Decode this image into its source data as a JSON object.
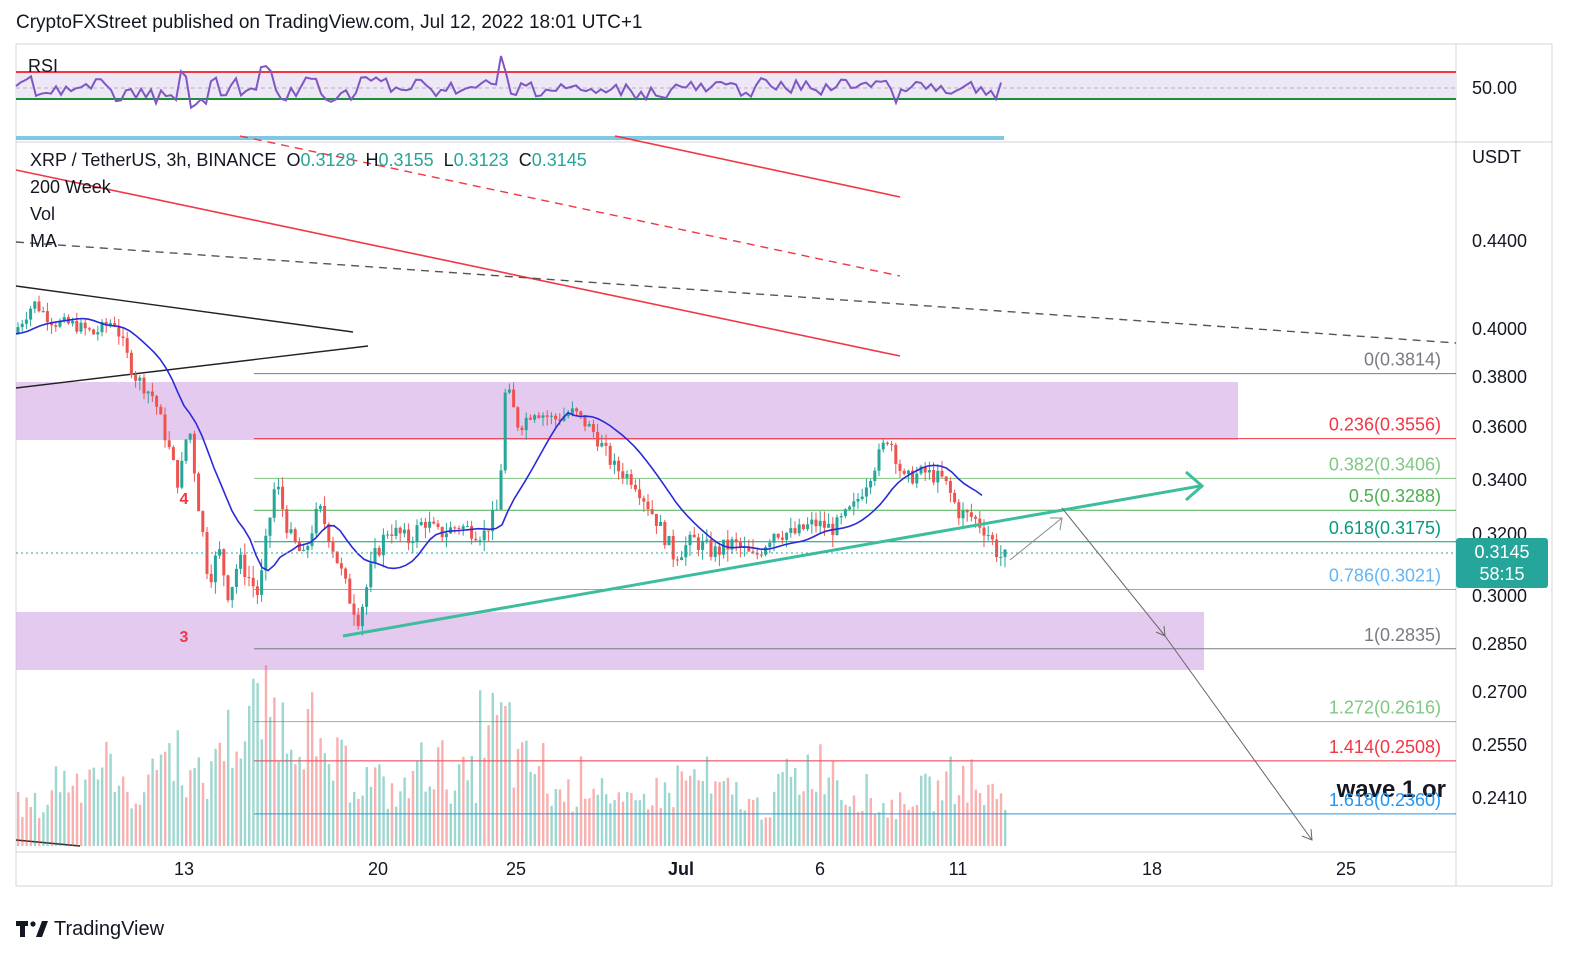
{
  "publisher": "CryptoFXStreet published on TradingView.com, Jul 12, 2022 18:01 UTC+1",
  "rsi": {
    "label": "RSI",
    "level_label": "50.00"
  },
  "legend": {
    "symbol": "XRP / TetherUS, 3h, BINANCE",
    "o_label": "O",
    "o_value": "0.3128",
    "h_label": "H",
    "h_value": "0.3155",
    "l_label": "L",
    "l_value": "0.3123",
    "c_label": "C",
    "c_value": "0.3145",
    "indicators": [
      "200 Week",
      "Vol",
      "MA"
    ]
  },
  "currency": "USDT",
  "price_tag": {
    "price": "0.3145",
    "countdown": "58:15"
  },
  "y_axis_ticks": [
    "0.4400",
    "0.4000",
    "0.3800",
    "0.3600",
    "0.3400",
    "0.3200",
    "0.3000",
    "0.2850",
    "0.2700",
    "0.2550",
    "0.2410"
  ],
  "x_axis_ticks": [
    "13",
    "20",
    "25",
    "Jul",
    "6",
    "11",
    "18",
    "25"
  ],
  "fib_levels": [
    {
      "text": "0(0.3814)",
      "color": "#787b86"
    },
    {
      "text": "0.236(0.3556)",
      "color": "#f23645"
    },
    {
      "text": "0.382(0.3406)",
      "color": "#81c784"
    },
    {
      "text": "0.5(0.3288)",
      "color": "#4caf50"
    },
    {
      "text": "0.618(0.3175)",
      "color": "#089981"
    },
    {
      "text": "0.786(0.3021)",
      "color": "#64b5f6"
    },
    {
      "text": "1(0.2835)",
      "color": "#787b86"
    },
    {
      "text": "1.272(0.2616)",
      "color": "#81c784"
    },
    {
      "text": "1.414(0.2508)",
      "color": "#f23645"
    },
    {
      "text": "1.618(0.2360)",
      "color": "#2196f3"
    }
  ],
  "wave_labels": {
    "three": "3",
    "four": "4",
    "annotation": "wave 1 or"
  },
  "footer": "TradingView",
  "colors": {
    "up": "#26a69a",
    "down": "#ef5350",
    "ma": "#2a2ad8",
    "trend": "#3dbd9e",
    "zone": "#d9b8e8"
  },
  "chart_data": {
    "type": "candlestick",
    "symbol": "XRP / TetherUS",
    "timeframe": "3h",
    "ohlc_last": {
      "open": 0.3128,
      "high": 0.3155,
      "low": 0.3123,
      "close": 0.3145
    },
    "x_ticks": [
      "13",
      "20",
      "25",
      "Jul",
      "6",
      "11",
      "18",
      "25"
    ],
    "y_ticks": [
      0.44,
      0.4,
      0.38,
      0.36,
      0.34,
      0.32,
      0.3,
      0.285,
      0.27,
      0.255,
      0.241
    ],
    "fib_retracement": [
      {
        "level": 0,
        "price": 0.3814
      },
      {
        "level": 0.236,
        "price": 0.3556
      },
      {
        "level": 0.382,
        "price": 0.3406
      },
      {
        "level": 0.5,
        "price": 0.3288
      },
      {
        "level": 0.618,
        "price": 0.3175
      },
      {
        "level": 0.786,
        "price": 0.3021
      },
      {
        "level": 1,
        "price": 0.2835
      },
      {
        "level": 1.272,
        "price": 0.2616
      },
      {
        "level": 1.414,
        "price": 0.2508
      },
      {
        "level": 1.618,
        "price": 0.236
      }
    ],
    "price_path": [
      [
        0,
        0.398
      ],
      [
        20,
        0.412
      ],
      [
        40,
        0.403
      ],
      [
        60,
        0.402
      ],
      [
        80,
        0.398
      ],
      [
        100,
        0.404
      ],
      [
        120,
        0.381
      ],
      [
        140,
        0.372
      ],
      [
        155,
        0.352
      ],
      [
        165,
        0.338
      ],
      [
        175,
        0.362
      ],
      [
        185,
        0.33
      ],
      [
        195,
        0.305
      ],
      [
        205,
        0.315
      ],
      [
        215,
        0.3
      ],
      [
        225,
        0.312
      ],
      [
        245,
        0.3
      ],
      [
        262,
        0.34
      ],
      [
        275,
        0.32
      ],
      [
        290,
        0.312
      ],
      [
        305,
        0.33
      ],
      [
        320,
        0.315
      ],
      [
        335,
        0.3
      ],
      [
        345,
        0.293
      ],
      [
        360,
        0.312
      ],
      [
        375,
        0.322
      ],
      [
        395,
        0.318
      ],
      [
        410,
        0.325
      ],
      [
        425,
        0.32
      ],
      [
        445,
        0.323
      ],
      [
        470,
        0.32
      ],
      [
        485,
        0.33
      ],
      [
        492,
        0.377
      ],
      [
        505,
        0.36
      ],
      [
        520,
        0.367
      ],
      [
        540,
        0.363
      ],
      [
        560,
        0.366
      ],
      [
        580,
        0.358
      ],
      [
        600,
        0.345
      ],
      [
        620,
        0.34
      ],
      [
        640,
        0.327
      ],
      [
        660,
        0.313
      ],
      [
        680,
        0.318
      ],
      [
        700,
        0.314
      ],
      [
        720,
        0.317
      ],
      [
        740,
        0.312
      ],
      [
        760,
        0.321
      ],
      [
        780,
        0.32
      ],
      [
        800,
        0.324
      ],
      [
        820,
        0.322
      ],
      [
        840,
        0.33
      ],
      [
        860,
        0.345
      ],
      [
        875,
        0.357
      ],
      [
        890,
        0.34
      ],
      [
        910,
        0.343
      ],
      [
        930,
        0.34
      ],
      [
        945,
        0.328
      ],
      [
        960,
        0.326
      ],
      [
        975,
        0.32
      ],
      [
        985,
        0.313
      ],
      [
        995,
        0.312
      ],
      [
        1003,
        0.3145
      ]
    ],
    "volume_profile": [
      0.3,
      0.5,
      0.6,
      0.4,
      0.7,
      0.5,
      0.8,
      1.0,
      0.9,
      0.6,
      0.5,
      0.4,
      0.6,
      0.5,
      0.9,
      0.6,
      0.4,
      0.5,
      0.3,
      0.4,
      0.5,
      0.4,
      0.3,
      0.5,
      0.6,
      0.4,
      0.3,
      0.4,
      0.5,
      0.4
    ]
  }
}
